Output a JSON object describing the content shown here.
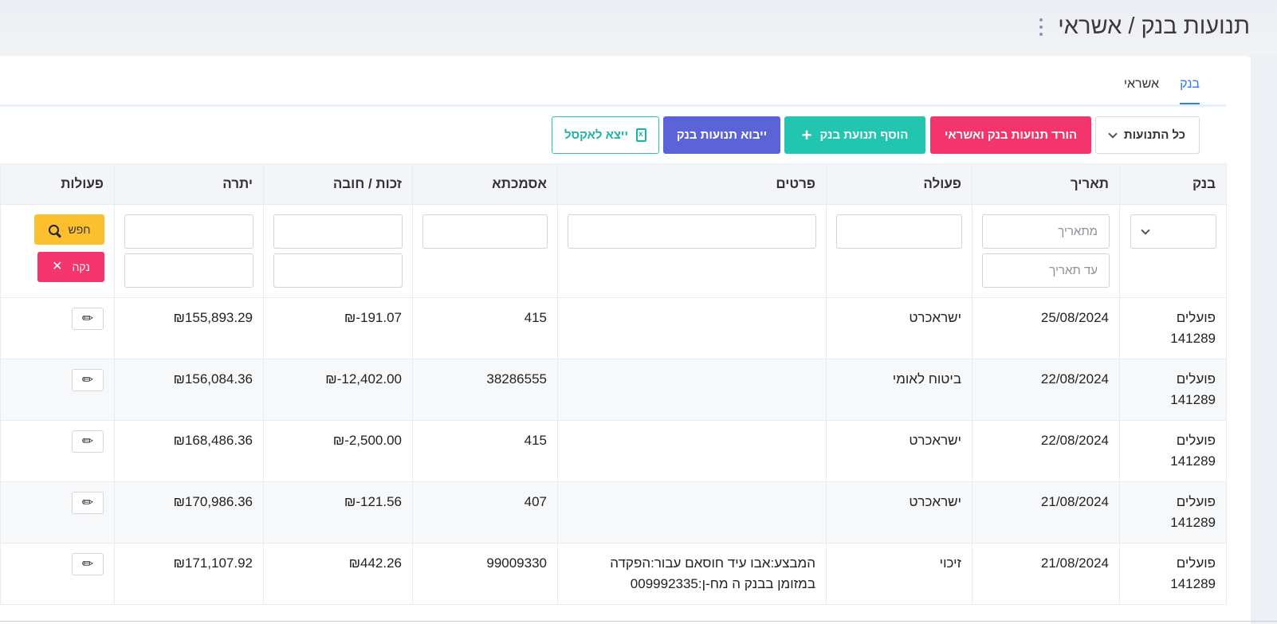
{
  "page": {
    "title": "תנועות בנק / אשראי",
    "menu_icon": "vertical-dots-icon"
  },
  "tabs": [
    {
      "label": "בנק",
      "active": true
    },
    {
      "label": "אשראי",
      "active": false
    }
  ],
  "toolbar": {
    "filter_label": "כל התנועות",
    "download_label": "הורד תנועות בנק ואשראי",
    "add_label": "הוסף תנועת בנק",
    "import_label": "ייבוא תנועות בנק",
    "export_label": "ייצא לאקסל"
  },
  "table": {
    "headers": {
      "bank": "בנק",
      "date": "תאריך",
      "action": "פעולה",
      "details": "פרטים",
      "reference": "אסמכתא",
      "amount": "זכות / חובה",
      "balance": "יתרה",
      "operations": "פעולות"
    },
    "filters": {
      "date_from_placeholder": "מתאריך",
      "date_to_placeholder": "עד תאריך",
      "search_label": "חפש",
      "clear_label": "נקה"
    },
    "rows": [
      {
        "bank": "פועלים",
        "account": "141289",
        "date": "25/08/2024",
        "action": "ישראכרט",
        "details": "",
        "reference": "415",
        "amount": "₪-191.07",
        "negative": true,
        "balance": "₪155,893.29"
      },
      {
        "bank": "פועלים",
        "account": "141289",
        "date": "22/08/2024",
        "action": "ביטוח לאומי",
        "details": "",
        "reference": "38286555",
        "amount": "₪-12,402.00",
        "negative": true,
        "balance": "₪156,084.36"
      },
      {
        "bank": "פועלים",
        "account": "141289",
        "date": "22/08/2024",
        "action": "ישראכרט",
        "details": "",
        "reference": "415",
        "amount": "₪-2,500.00",
        "negative": true,
        "balance": "₪168,486.36"
      },
      {
        "bank": "פועלים",
        "account": "141289",
        "date": "21/08/2024",
        "action": "ישראכרט",
        "details": "",
        "reference": "407",
        "amount": "₪-121.56",
        "negative": true,
        "balance": "₪170,986.36"
      },
      {
        "bank": "פועלים",
        "account": "141289",
        "date": "21/08/2024",
        "action": "זיכוי",
        "details": "המבצע:אבו עיד חוסאם עבור:הפקדה במזומן בבנק ה מח-ן:009992335",
        "reference": "99009330",
        "amount": "₪442.26",
        "negative": false,
        "balance": "₪171,107.92"
      }
    ]
  },
  "colors": {
    "accent_blue": "#2e7cf6",
    "download_pink": "#f3346d",
    "add_teal": "#22c5b0",
    "import_indigo": "#5b63d8",
    "search_yellow": "#fcc02e",
    "negative_red": "#e8141c"
  }
}
